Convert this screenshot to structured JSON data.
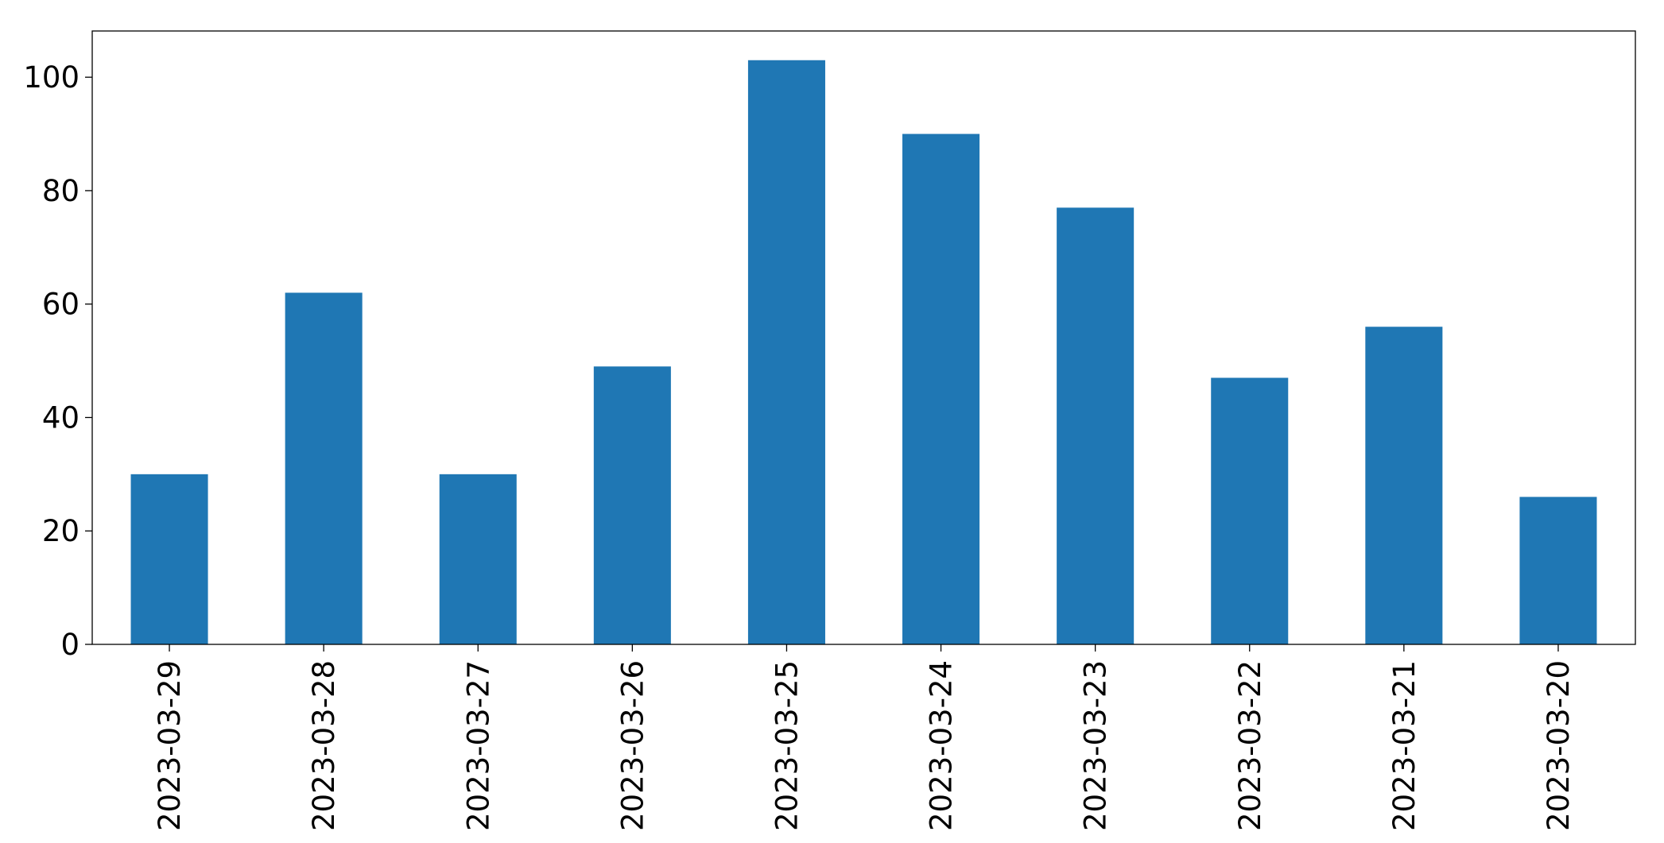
{
  "chart_data": {
    "type": "bar",
    "title": "",
    "xlabel": "",
    "ylabel": "",
    "categories": [
      "2023-03-29",
      "2023-03-28",
      "2023-03-27",
      "2023-03-26",
      "2023-03-25",
      "2023-03-24",
      "2023-03-23",
      "2023-03-22",
      "2023-03-21",
      "2023-03-20"
    ],
    "values": [
      30,
      62,
      30,
      49,
      103,
      90,
      77,
      47,
      56,
      26
    ],
    "ylim": [
      0,
      108.15
    ],
    "yticks": [
      0,
      20,
      40,
      60,
      80,
      100
    ],
    "bar_color": "#1f77b4",
    "grid": false,
    "legend": "none"
  }
}
